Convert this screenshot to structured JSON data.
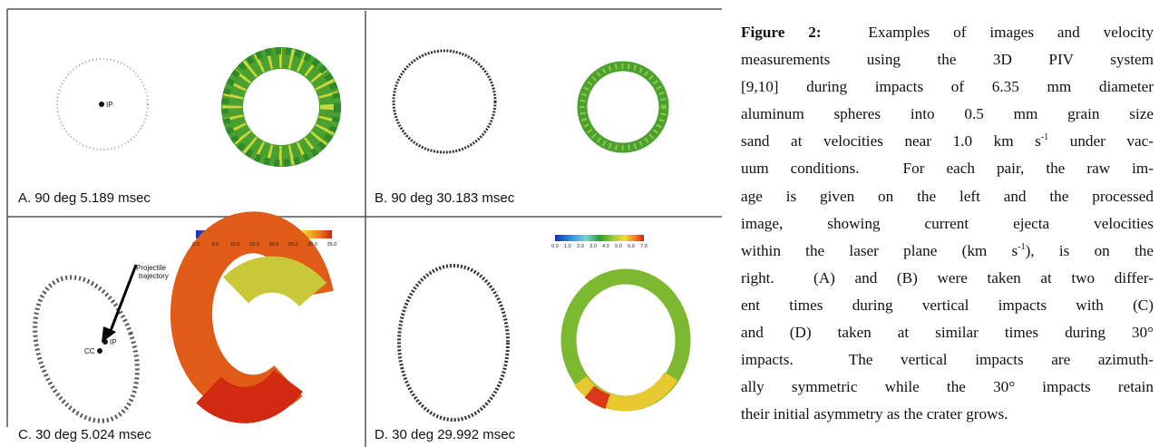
{
  "figure": {
    "panels": [
      {
        "label": "A. 90 deg  5.189 msec",
        "annotations": [
          "IP"
        ]
      },
      {
        "label": "B. 90 deg  30.183 msec"
      },
      {
        "label": "C. 30 deg  5.024 msec",
        "annotations": [
          "IP",
          "CC",
          "Projectile",
          "trajectory"
        ],
        "colorbar": [
          "0.0",
          "5.0",
          "10.0",
          "15.0",
          "20.0",
          "25.0",
          "30.0",
          "35.0"
        ]
      },
      {
        "label": "D. 30 deg  29.992 msec",
        "colorbar": [
          "0.0",
          "1.0",
          "2.0",
          "3.0",
          "4.0",
          "5.0",
          "6.0",
          "7.0"
        ]
      }
    ]
  },
  "caption": {
    "label": "Figure 2:",
    "lines": [
      [
        "  Examples of images and velocity"
      ],
      [
        "measurements using the 3D PIV system"
      ],
      [
        "[9,10] during impacts of 6.35 mm diameter"
      ],
      [
        "aluminum spheres into 0.5 mm grain size"
      ],
      [
        "sand at velocities near 1.0 km s",
        {
          "sup": "-1"
        },
        " under vac-"
      ],
      [
        "uum conditions.  For each pair, the raw im-"
      ],
      [
        "age is given on the left and the processed"
      ],
      [
        "image, showing current ejecta velocities"
      ],
      [
        "within the laser plane (km s",
        {
          "sup": "-1"
        },
        "), is on the"
      ],
      [
        "right.  (A) and (B) were taken at two differ-"
      ],
      [
        "ent times during vertical impacts with (C)"
      ],
      [
        "and (D) taken at similar times during 30°"
      ],
      [
        "impacts.  The vertical impacts are azimuth-"
      ],
      [
        "ally symmetric while the 30° impacts retain"
      ],
      [
        "their initial asymmetry as the crater grows."
      ]
    ]
  }
}
